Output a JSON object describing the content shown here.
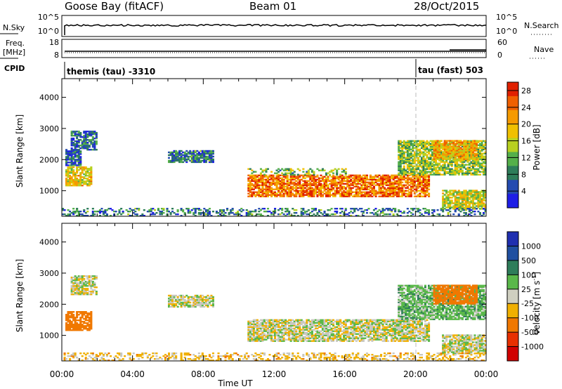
{
  "header": {
    "station": "Goose Bay (fitACF)",
    "beam": "Beam 01",
    "date": "28/Oct/2015"
  },
  "summary_panels": {
    "nsky": {
      "label": "N.Sky",
      "left_ticks": [
        "10^5",
        "10^0"
      ],
      "right_label": "N.Search",
      "right_ticks": [
        "10^5",
        "10^0"
      ]
    },
    "freq": {
      "label_line1": "Freq.",
      "label_line2": "[MHz]",
      "left_ticks": [
        "18",
        "8"
      ],
      "right_label": "Nave",
      "right_ticks": [
        "60",
        "0"
      ]
    },
    "cpid": {
      "label": "CPID",
      "modes": [
        {
          "text": "themis (tau) -3310",
          "start_hour": 0
        },
        {
          "text": "tau (fast) 503",
          "start_hour": 20.0
        }
      ]
    }
  },
  "colors": {
    "power_scale": [
      "#1e1ee6",
      "#244bb0",
      "#2e7d5a",
      "#55b04a",
      "#b8d020",
      "#f0c000",
      "#f59a00",
      "#f06000",
      "#e02000"
    ],
    "velocity_scale": [
      "#1f2fb0",
      "#1f4fa0",
      "#2e7d5a",
      "#5ab84a",
      "#cfcfc0",
      "#f0b000",
      "#f07800",
      "#e83000",
      "#d00000"
    ],
    "ground_scatter": "#c8c8c0"
  },
  "chart_data": [
    {
      "type": "heatmap",
      "title": "",
      "xlabel": "Time UT",
      "ylabel": "Slant Range [km]",
      "xlim": [
        0,
        24
      ],
      "ylim": [
        180,
        4600
      ],
      "x_ticks": [
        "00:00",
        "04:00",
        "08:00",
        "12:00",
        "16:00",
        "20:00",
        "00:00"
      ],
      "y_ticks": [
        "1000",
        "2000",
        "3000",
        "4000"
      ],
      "colorbar": {
        "label": "Power [dB]",
        "ticks": [
          "4",
          "8",
          "12",
          "16",
          "20",
          "24",
          "28"
        ],
        "range": [
          0,
          30
        ]
      },
      "regions": [
        {
          "t0": 0.2,
          "t1": 1.7,
          "r0": 1150,
          "r1": 1750,
          "value": 18
        },
        {
          "t0": 0.2,
          "t1": 1.0,
          "r0": 1800,
          "r1": 2300,
          "value": 6
        },
        {
          "t0": 0.5,
          "t1": 2.0,
          "r0": 2300,
          "r1": 2900,
          "value": 7
        },
        {
          "t0": 6.0,
          "t1": 8.5,
          "r0": 1900,
          "r1": 2300,
          "value": 8
        },
        {
          "t0": 10.5,
          "t1": 20.8,
          "r0": 800,
          "r1": 1500,
          "value": 24
        },
        {
          "t0": 10.5,
          "t1": 16.0,
          "r0": 1500,
          "r1": 1700,
          "value": 12
        },
        {
          "t0": 19.0,
          "t1": 24.0,
          "r0": 1500,
          "r1": 2600,
          "value": 14
        },
        {
          "t0": 21.0,
          "t1": 23.5,
          "r0": 2000,
          "r1": 2600,
          "value": 20
        },
        {
          "t0": 21.5,
          "t1": 24.0,
          "r0": 400,
          "r1": 1000,
          "value": 16
        },
        {
          "t0": 0.0,
          "t1": 24.0,
          "r0": 180,
          "r1": 420,
          "value": 8
        }
      ]
    },
    {
      "type": "heatmap",
      "title": "",
      "xlabel": "Time UT",
      "ylabel": "Slant Range [km]",
      "xlim": [
        0,
        24
      ],
      "ylim": [
        180,
        4600
      ],
      "x_ticks": [
        "00:00",
        "04:00",
        "08:00",
        "12:00",
        "16:00",
        "20:00",
        "00:00"
      ],
      "y_ticks": [
        "1000",
        "2000",
        "3000",
        "4000"
      ],
      "colorbar": {
        "label": "Velocity [m s^-1]",
        "ticks": [
          "1000",
          "500",
          "100",
          "25",
          "-25",
          "-100",
          "-500",
          "-1000"
        ]
      },
      "regions": [
        {
          "t0": 0.2,
          "t1": 1.7,
          "r0": 1150,
          "r1": 1750,
          "value": -300
        },
        {
          "t0": 0.5,
          "t1": 2.0,
          "r0": 2300,
          "r1": 2900,
          "value": 0
        },
        {
          "t0": 6.0,
          "t1": 8.5,
          "r0": 1900,
          "r1": 2300,
          "value": 0
        },
        {
          "t0": 10.5,
          "t1": 20.8,
          "r0": 800,
          "r1": 1500,
          "value": 0
        },
        {
          "t0": 19.0,
          "t1": 24.0,
          "r0": 1500,
          "r1": 2600,
          "value": 60
        },
        {
          "t0": 21.0,
          "t1": 23.5,
          "r0": 2000,
          "r1": 2600,
          "value": -300
        },
        {
          "t0": 21.5,
          "t1": 24.0,
          "r0": 400,
          "r1": 1000,
          "value": 0
        },
        {
          "t0": 0.0,
          "t1": 24.0,
          "r0": 180,
          "r1": 420,
          "value": -50
        }
      ]
    }
  ]
}
